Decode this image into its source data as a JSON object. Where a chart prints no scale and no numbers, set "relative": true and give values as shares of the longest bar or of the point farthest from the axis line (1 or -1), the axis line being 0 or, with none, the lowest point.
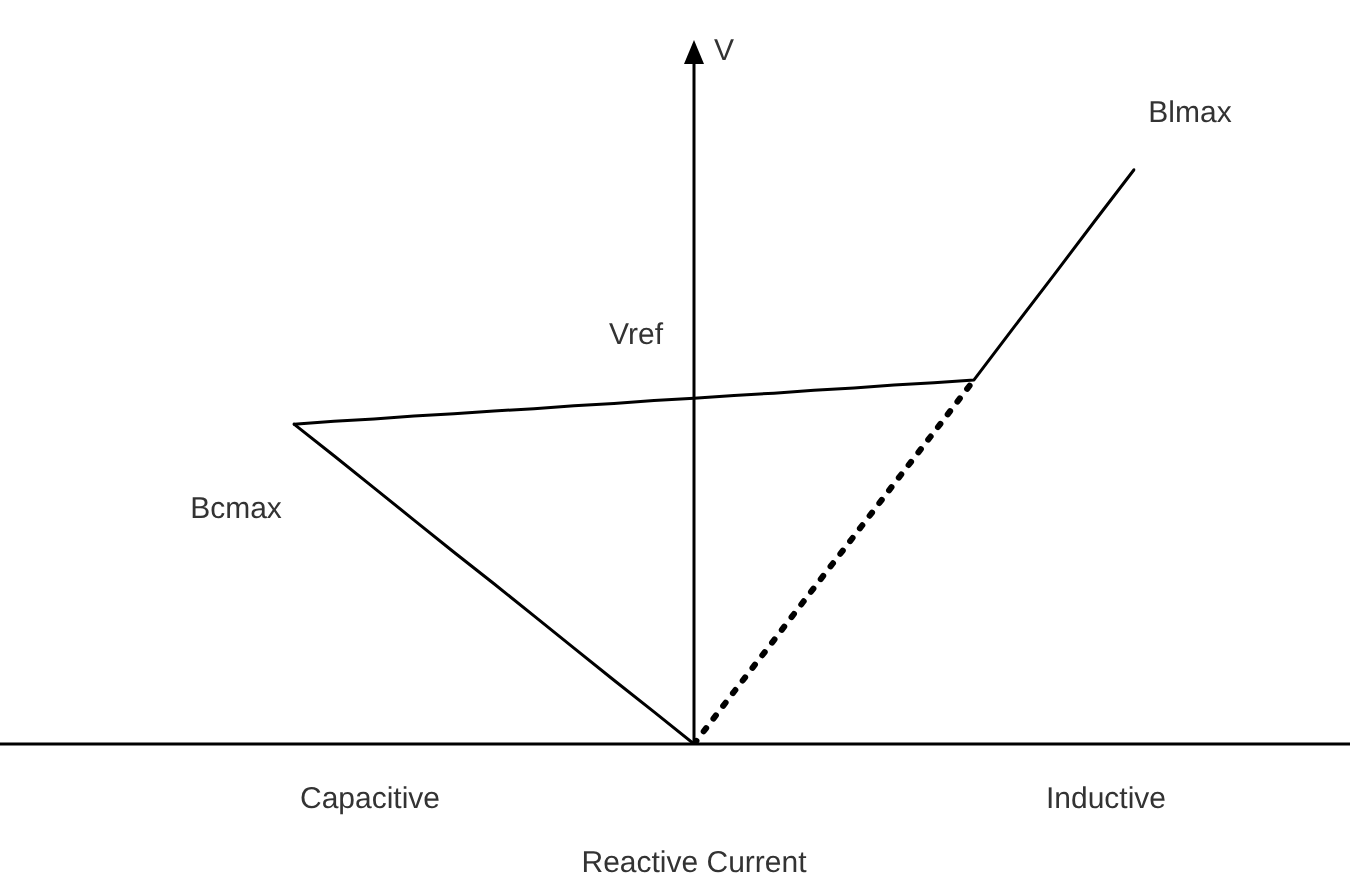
{
  "chart_data": {
    "type": "line",
    "relative": true,
    "xlabel": "Reactive Current",
    "ylabel": "V",
    "marker": "none",
    "legend": false,
    "categories": [
      null,
      null,
      null,
      null,
      null,
      null,
      null,
      null,
      null,
      null,
      null,
      null,
      null,
      null,
      null,
      null,
      null,
      null,
      null,
      null,
      null,
      null
    ],
    "series": [
      {
        "color": "#000000",
        "line_style": "solid",
        "values": [
          0.557,
          0.502,
          0.446,
          0.39,
          0.334,
          0.279,
          0.223,
          0.167,
          0.111,
          0.056,
          0,
          null,
          null,
          null,
          null,
          null,
          null,
          null,
          null,
          null,
          null,
          null
        ]
      },
      {
        "color": "#000000",
        "line_style": "solid",
        "values": [
          0.557,
          0.562,
          0.566,
          0.571,
          0.575,
          0.58,
          0.584,
          0.589,
          0.593,
          0.598,
          0.602,
          0.607,
          0.611,
          0.616,
          0.62,
          0.625,
          0.629,
          0.634,
          0.726,
          0.817,
          0.909,
          1
        ]
      },
      {
        "color": "#000000",
        "line_style": "dotted",
        "values": [
          null,
          null,
          null,
          null,
          null,
          null,
          null,
          null,
          null,
          null,
          0,
          0.091,
          0.181,
          0.272,
          0.362,
          0.453,
          0.543,
          0.634,
          null,
          null,
          null,
          null
        ]
      }
    ],
    "annotations": [
      "Capacitive",
      "Inductive",
      "Vref",
      "Bcmax",
      "Blmax"
    ]
  }
}
